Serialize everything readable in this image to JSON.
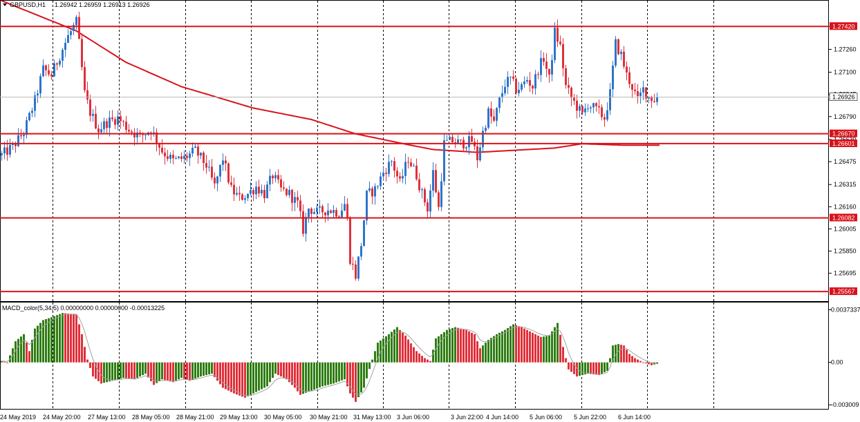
{
  "header": {
    "symbol_text": "GBPUSD,H1",
    "ohlc_text": "1.26942 1.26959 1.26913 1.26926"
  },
  "indicator": {
    "label": "MACD_color(5,34,5) 0.00000000 0.00000000 -0.00013225"
  },
  "colors": {
    "bull": "#2e75c8",
    "bear": "#e0303a",
    "level": "#d8121a",
    "ma": "#d8121a",
    "macd_pos": "#2e7d12",
    "macd_neg": "#e0303a",
    "signal": "#a0a0a0"
  },
  "chart_data": [
    {
      "type": "candlestick",
      "title": "GBPUSD,H1",
      "ylim": [
        1.255,
        1.276
      ],
      "price_ticks": [
        "1.27420",
        "1.27260",
        "1.27100",
        "1.26945",
        "1.26790",
        "1.26630",
        "1.26475",
        "1.26315",
        "1.26160",
        "1.26005",
        "1.25850",
        "1.25695"
      ],
      "price_tick_values": [
        1.2742,
        1.2726,
        1.271,
        1.26945,
        1.2679,
        1.2663,
        1.26475,
        1.26315,
        1.2616,
        1.26005,
        1.2585,
        1.25695
      ],
      "time_labels": [
        "24 May 2019",
        "24 May 20:00",
        "27 May 13:00",
        "28 May 05:00",
        "28 May 21:00",
        "29 May 13:00",
        "30 May 05:00",
        "30 May 21:00",
        "31 May 13:00",
        "3 Jun 06:00",
        "3 Jun 22:00",
        "4 Jun 14:00",
        "5 Jun 06:00",
        "5 Jun 22:00",
        "6 Jun 14:00"
      ],
      "levels": [
        {
          "label": "1.27420",
          "value": 1.2742
        },
        {
          "label": "1.26670",
          "value": 1.2667
        },
        {
          "label": "1.26601",
          "value": 1.26601
        },
        {
          "label": "1.26082",
          "value": 1.26082
        },
        {
          "label": "1.25567",
          "value": 1.25567
        }
      ],
      "current_price": {
        "label": "1.26926",
        "value": 1.26926
      },
      "anchors": [
        [
          0,
          1.2652
        ],
        [
          4,
          1.2658
        ],
        [
          8,
          1.2668
        ],
        [
          12,
          1.269
        ],
        [
          15,
          1.2712
        ],
        [
          18,
          1.2708
        ],
        [
          21,
          1.2722
        ],
        [
          24,
          1.2735
        ],
        [
          27,
          1.2745
        ],
        [
          28,
          1.273
        ],
        [
          30,
          1.2695
        ],
        [
          32,
          1.2682
        ],
        [
          35,
          1.267
        ],
        [
          38,
          1.2675
        ],
        [
          42,
          1.2678
        ],
        [
          46,
          1.267
        ],
        [
          50,
          1.2665
        ],
        [
          54,
          1.267
        ],
        [
          58,
          1.2655
        ],
        [
          62,
          1.2648
        ],
        [
          66,
          1.265
        ],
        [
          70,
          1.2655
        ],
        [
          74,
          1.2645
        ],
        [
          77,
          1.263
        ],
        [
          80,
          1.265
        ],
        [
          83,
          1.2628
        ],
        [
          86,
          1.2622
        ],
        [
          89,
          1.2625
        ],
        [
          92,
          1.263
        ],
        [
          95,
          1.2625
        ],
        [
          98,
          1.2638
        ],
        [
          101,
          1.2628
        ],
        [
          104,
          1.2625
        ],
        [
          107,
          1.2618
        ],
        [
          109,
          1.26
        ],
        [
          111,
          1.2615
        ],
        [
          114,
          1.2612
        ],
        [
          118,
          1.2614
        ],
        [
          122,
          1.2612
        ],
        [
          124,
          1.2618
        ],
        [
          125,
          1.2607
        ],
        [
          126,
          1.258
        ],
        [
          128,
          1.2568
        ],
        [
          130,
          1.259
        ],
        [
          132,
          1.2624
        ],
        [
          135,
          1.2628
        ],
        [
          138,
          1.264
        ],
        [
          141,
          1.2648
        ],
        [
          144,
          1.2632
        ],
        [
          147,
          1.265
        ],
        [
          150,
          1.2638
        ],
        [
          152,
          1.2625
        ],
        [
          154,
          1.2615
        ],
        [
          156,
          1.264
        ],
        [
          158,
          1.2615
        ],
        [
          160,
          1.266
        ],
        [
          163,
          1.2662
        ],
        [
          166,
          1.266
        ],
        [
          170,
          1.2662
        ],
        [
          172,
          1.265
        ],
        [
          174,
          1.2668
        ],
        [
          176,
          1.2682
        ],
        [
          178,
          1.2675
        ],
        [
          180,
          1.269
        ],
        [
          182,
          1.2702
        ],
        [
          184,
          1.2705
        ],
        [
          186,
          1.2698
        ],
        [
          188,
          1.27
        ],
        [
          190,
          1.2705
        ],
        [
          192,
          1.27
        ],
        [
          194,
          1.2712
        ],
        [
          196,
          1.272
        ],
        [
          198,
          1.2705
        ],
        [
          200,
          1.2738
        ],
        [
          202,
          1.2728
        ],
        [
          204,
          1.27
        ],
        [
          206,
          1.2692
        ],
        [
          208,
          1.2686
        ],
        [
          210,
          1.268
        ],
        [
          212,
          1.2688
        ],
        [
          214,
          1.2685
        ],
        [
          216,
          1.2682
        ],
        [
          218,
          1.2678
        ],
        [
          220,
          1.2695
        ],
        [
          222,
          1.273
        ],
        [
          224,
          1.2722
        ],
        [
          226,
          1.2708
        ],
        [
          228,
          1.27
        ],
        [
          230,
          1.269
        ],
        [
          232,
          1.2698
        ],
        [
          234,
          1.2693
        ],
        [
          236,
          1.2691
        ],
        [
          237,
          1.26926
        ]
      ],
      "ma_values": [
        [
          0,
          1.276
        ],
        [
          27,
          1.2739
        ],
        [
          45,
          1.2717
        ],
        [
          65,
          1.27
        ],
        [
          91,
          1.2685
        ],
        [
          112,
          1.2677
        ],
        [
          128,
          1.2667
        ],
        [
          148,
          1.2659
        ],
        [
          156,
          1.2656
        ],
        [
          172,
          1.2654
        ],
        [
          200,
          1.2657
        ],
        [
          210,
          1.266
        ],
        [
          225,
          1.2659
        ],
        [
          238,
          1.2659
        ]
      ],
      "macd": {
        "ylim": [
          -0.0031,
          0.004
        ],
        "ticks": [
          "0.0037337",
          "0.00",
          "-0.003009"
        ],
        "tick_values": [
          0.0037337,
          0.0,
          -0.003009
        ],
        "anchors": [
          [
            0,
            0.0001
          ],
          [
            2,
            0.0
          ],
          [
            5,
            0.0015
          ],
          [
            8,
            0.002
          ],
          [
            10,
            0.0008
          ],
          [
            12,
            0.0024
          ],
          [
            15,
            0.003
          ],
          [
            18,
            0.0032
          ],
          [
            22,
            0.0035
          ],
          [
            27,
            0.0034
          ],
          [
            29,
            0.002
          ],
          [
            31,
            0.0002
          ],
          [
            33,
            -0.001
          ],
          [
            36,
            -0.0015
          ],
          [
            40,
            -0.0013
          ],
          [
            44,
            -0.0011
          ],
          [
            48,
            -0.0012
          ],
          [
            52,
            -0.0008
          ],
          [
            55,
            -0.0016
          ],
          [
            58,
            -0.0012
          ],
          [
            62,
            -0.0014
          ],
          [
            65,
            -0.0011
          ],
          [
            68,
            -0.0013
          ],
          [
            72,
            -0.001
          ],
          [
            76,
            -0.0008
          ],
          [
            80,
            -0.0018
          ],
          [
            84,
            -0.0022
          ],
          [
            88,
            -0.0025
          ],
          [
            92,
            -0.0021
          ],
          [
            96,
            -0.0017
          ],
          [
            99,
            -0.0008
          ],
          [
            103,
            -0.0012
          ],
          [
            106,
            -0.0018
          ],
          [
            108,
            -0.0023
          ],
          [
            112,
            -0.002
          ],
          [
            116,
            -0.0017
          ],
          [
            120,
            -0.0015
          ],
          [
            124,
            -0.0012
          ],
          [
            126,
            -0.0022
          ],
          [
            128,
            -0.0028
          ],
          [
            131,
            -0.0018
          ],
          [
            134,
            0.0002
          ],
          [
            136,
            0.0014
          ],
          [
            140,
            0.002
          ],
          [
            143,
            0.0025
          ],
          [
            146,
            0.0019
          ],
          [
            150,
            0.0008
          ],
          [
            153,
            0.0003
          ],
          [
            155,
            0.0001
          ],
          [
            157,
            0.0017
          ],
          [
            161,
            0.0023
          ],
          [
            164,
            0.0025
          ],
          [
            168,
            0.0023
          ],
          [
            171,
            0.002
          ],
          [
            173,
            0.001
          ],
          [
            176,
            0.0016
          ],
          [
            179,
            0.002
          ],
          [
            182,
            0.0023
          ],
          [
            185,
            0.0027
          ],
          [
            188,
            0.0025
          ],
          [
            192,
            0.0021
          ],
          [
            195,
            0.0018
          ],
          [
            198,
            0.0019
          ],
          [
            201,
            0.0028
          ],
          [
            203,
            0.0011
          ],
          [
            205,
            -0.0005
          ],
          [
            208,
            -0.001
          ],
          [
            212,
            -0.0008
          ],
          [
            216,
            -0.0009
          ],
          [
            219,
            -0.0006
          ],
          [
            221,
            0.0012
          ],
          [
            223,
            0.0013
          ],
          [
            225,
            0.0012
          ],
          [
            227,
            0.0006
          ],
          [
            229,
            0.0003
          ],
          [
            232,
            0.0
          ],
          [
            235,
            -0.0002
          ],
          [
            237,
            -0.0001
          ]
        ]
      }
    }
  ]
}
